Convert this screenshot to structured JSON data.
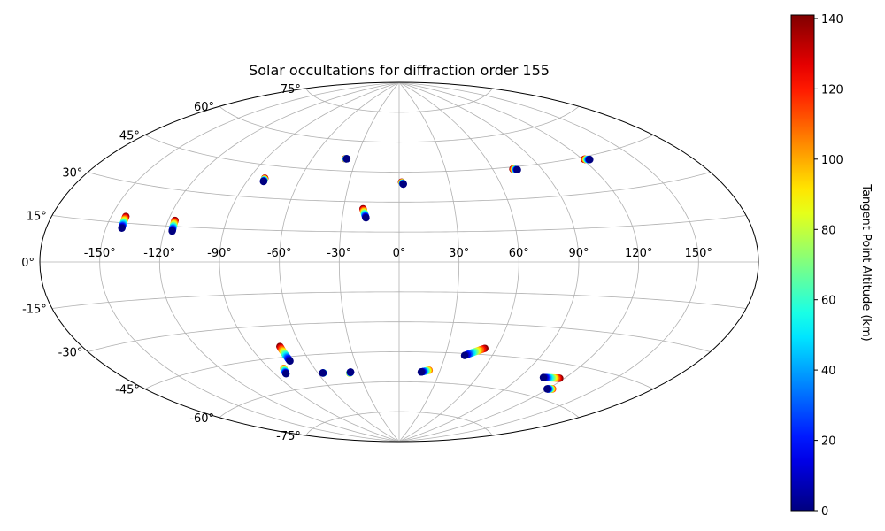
{
  "chart_data": {
    "type": "scatter",
    "projection": "aitoff",
    "title": "Solar occultations for diffraction order 155",
    "grid": true,
    "x_ticks": [
      "-150°",
      "-120°",
      "-90°",
      "-60°",
      "-30°",
      "0°",
      "30°",
      "60°",
      "90°",
      "120°",
      "150°"
    ],
    "x_tick_values": [
      -150,
      -120,
      -90,
      -60,
      -30,
      0,
      30,
      60,
      90,
      120,
      150
    ],
    "y_ticks": [
      "-75°",
      "-60°",
      "-45°",
      "-30°",
      "-15°",
      "0°",
      "15°",
      "30°",
      "45°",
      "60°",
      "75°"
    ],
    "y_tick_values": [
      -75,
      -60,
      -45,
      -30,
      -15,
      0,
      15,
      30,
      45,
      60,
      75
    ],
    "colorbar": {
      "label": "Tangent Point Altitude (km)",
      "range": [
        0,
        141
      ],
      "ticks": [
        "0",
        "20",
        "40",
        "60",
        "80",
        "100",
        "120",
        "140"
      ],
      "tick_values": [
        0,
        20,
        40,
        60,
        80,
        100,
        120,
        140
      ],
      "colormap": "jet"
    },
    "series": [
      {
        "start": {
          "lon": -142.5,
          "lat": 17.5,
          "alt": 140
        },
        "end": {
          "lon": -142.0,
          "lat": 13.0,
          "alt": 0
        }
      },
      {
        "start": {
          "lon": -116.5,
          "lat": 17.5,
          "alt": 140
        },
        "end": {
          "lon": -116.0,
          "lat": 13.0,
          "alt": 0
        }
      },
      {
        "start": {
          "lon": -81.0,
          "lat": 39.0,
          "alt": 140
        },
        "end": {
          "lon": -80.5,
          "lat": 37.5,
          "alt": 0
        }
      },
      {
        "start": {
          "lon": -37.5,
          "lat": 51.0,
          "alt": 140
        },
        "end": {
          "lon": -36.5,
          "lat": 51.0,
          "alt": 0
        }
      },
      {
        "start": {
          "lon": -19.5,
          "lat": 26.5,
          "alt": 140
        },
        "end": {
          "lon": -17.5,
          "lat": 22.0,
          "alt": 0
        }
      },
      {
        "start": {
          "lon": 1.5,
          "lat": 40.0,
          "alt": 140
        },
        "end": {
          "lon": 2.5,
          "lat": 39.0,
          "alt": 0
        }
      },
      {
        "start": {
          "lon": 72.5,
          "lat": 44.0,
          "alt": 140
        },
        "end": {
          "lon": 75.0,
          "lat": 43.5,
          "alt": 0
        }
      },
      {
        "start": {
          "lon": 121.0,
          "lat": 44.0,
          "alt": 140
        },
        "end": {
          "lon": 124.0,
          "lat": 43.5,
          "alt": 0
        }
      },
      {
        "start": {
          "lon": -72.5,
          "lat": -40.0,
          "alt": 140
        },
        "end": {
          "lon": -72.5,
          "lat": -47.0,
          "alt": 0
        }
      },
      {
        "start": {
          "lon": -80.5,
          "lat": -50.0,
          "alt": 110
        },
        "end": {
          "lon": -82.5,
          "lat": -52.5,
          "alt": 0
        }
      },
      {
        "start": {
          "lon": -56.0,
          "lat": -54.0,
          "alt": 80
        },
        "end": {
          "lon": -56.5,
          "lat": -54.0,
          "alt": 0
        }
      },
      {
        "start": {
          "lon": -37.0,
          "lat": -55.0,
          "alt": 100
        },
        "end": {
          "lon": -36.0,
          "lat": -54.5,
          "alt": 0
        }
      },
      {
        "start": {
          "lon": 22.0,
          "lat": -54.0,
          "alt": 110
        },
        "end": {
          "lon": 16.5,
          "lat": -55.0,
          "alt": 0
        }
      },
      {
        "start": {
          "lon": 53.0,
          "lat": -42.0,
          "alt": 140
        },
        "end": {
          "lon": 42.5,
          "lat": -46.0,
          "alt": 0
        }
      },
      {
        "start": {
          "lon": 117.0,
          "lat": -51.0,
          "alt": 140
        },
        "end": {
          "lon": 106.0,
          "lat": -52.0,
          "alt": 0
        }
      },
      {
        "start": {
          "lon": 123.0,
          "lat": -55.5,
          "alt": 120
        },
        "end": {
          "lon": 119.5,
          "lat": -56.0,
          "alt": 0
        }
      }
    ]
  }
}
